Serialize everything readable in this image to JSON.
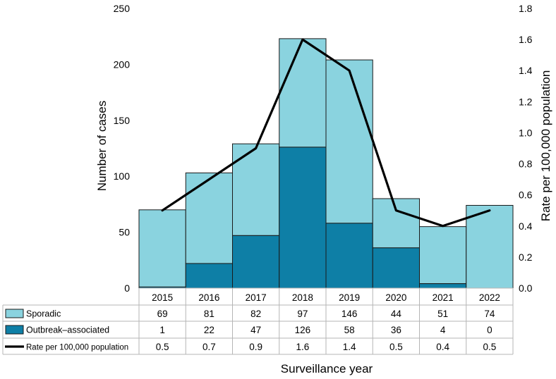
{
  "chart_data": {
    "type": "bar",
    "stacked": true,
    "categories": [
      "2015",
      "2016",
      "2017",
      "2018",
      "2019",
      "2020",
      "2021",
      "2022"
    ],
    "series": [
      {
        "name": "Outbreak–associated",
        "type": "bar",
        "axis": "left",
        "color": "#0E7FA6",
        "values": [
          1,
          22,
          47,
          126,
          58,
          36,
          4,
          0
        ]
      },
      {
        "name": "Sporadic",
        "type": "bar",
        "axis": "left",
        "color": "#8AD3DF",
        "values": [
          69,
          81,
          82,
          97,
          146,
          44,
          51,
          74
        ]
      },
      {
        "name": "Rate per 100,000 population",
        "type": "line",
        "axis": "right",
        "color": "#000000",
        "values": [
          0.5,
          0.7,
          0.9,
          1.6,
          1.4,
          0.5,
          0.4,
          0.5
        ]
      }
    ],
    "table_rows": [
      {
        "label": "Sporadic",
        "values": [
          "69",
          "81",
          "82",
          "97",
          "146",
          "44",
          "51",
          "74"
        ]
      },
      {
        "label": "Outbreak–associated",
        "values": [
          "1",
          "22",
          "47",
          "126",
          "58",
          "36",
          "4",
          "0"
        ]
      },
      {
        "label": "Rate per 100,000 population",
        "values": [
          "0.5",
          "0.7",
          "0.9",
          "1.6",
          "1.4",
          "0.5",
          "0.4",
          "0.5"
        ]
      }
    ],
    "ylim": [
      0,
      250
    ],
    "yticks": [
      "0",
      "50",
      "100",
      "150",
      "200",
      "250"
    ],
    "y2lim": [
      0,
      1.8
    ],
    "y2ticks": [
      "0.0",
      "0.2",
      "0.4",
      "0.6",
      "0.8",
      "1.0",
      "1.2",
      "1.4",
      "1.6",
      "1.8"
    ],
    "ylabel": "Number of cases",
    "y2label": "Rate per 100,000 population",
    "xlabel": "Surveillance year",
    "grid": false
  }
}
